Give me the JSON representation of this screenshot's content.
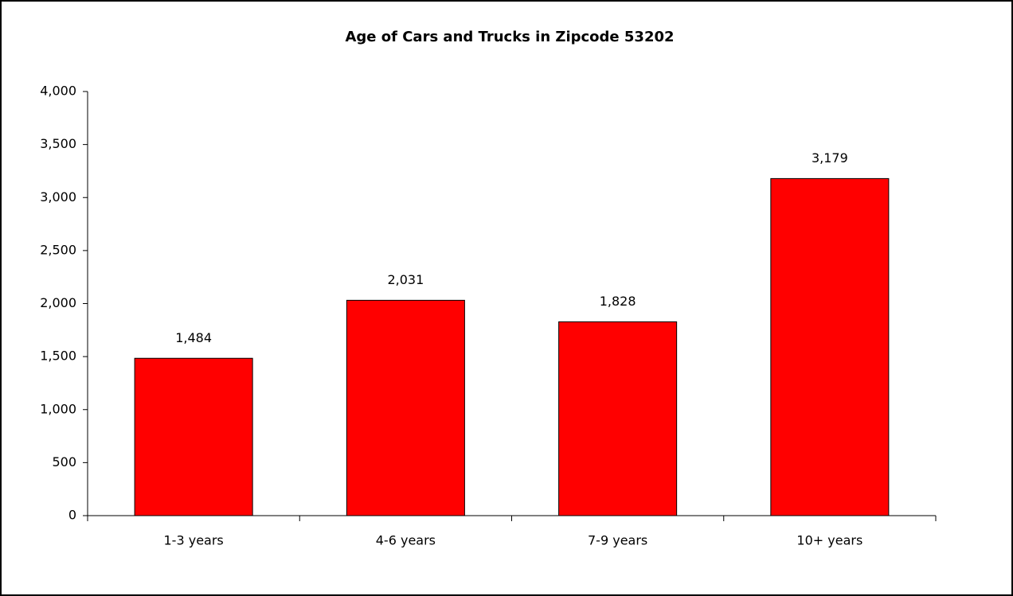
{
  "chart_data": {
    "type": "bar",
    "title": "Age of Cars and Trucks in Zipcode 53202",
    "categories": [
      "1-3 years",
      "4-6 years",
      "7-9 years",
      "10+ years"
    ],
    "values": [
      1484,
      2031,
      1828,
      3179
    ],
    "value_labels": [
      "1,484",
      "2,031",
      "1,828",
      "3,179"
    ],
    "color": "#ff0000",
    "ylim": [
      0,
      4000
    ],
    "yticks": [
      0,
      500,
      {
        "value": 1000,
        "label": "1,000"
      },
      {
        "value": 1500,
        "label": "1,500"
      },
      {
        "value": 2000,
        "label": "2,000"
      },
      {
        "value": 2500,
        "label": "2,500"
      },
      {
        "value": 3000,
        "label": "3,000"
      },
      {
        "value": 3500,
        "label": "3,500"
      },
      {
        "value": 4000,
        "label": "4,000"
      }
    ],
    "grid": false
  }
}
